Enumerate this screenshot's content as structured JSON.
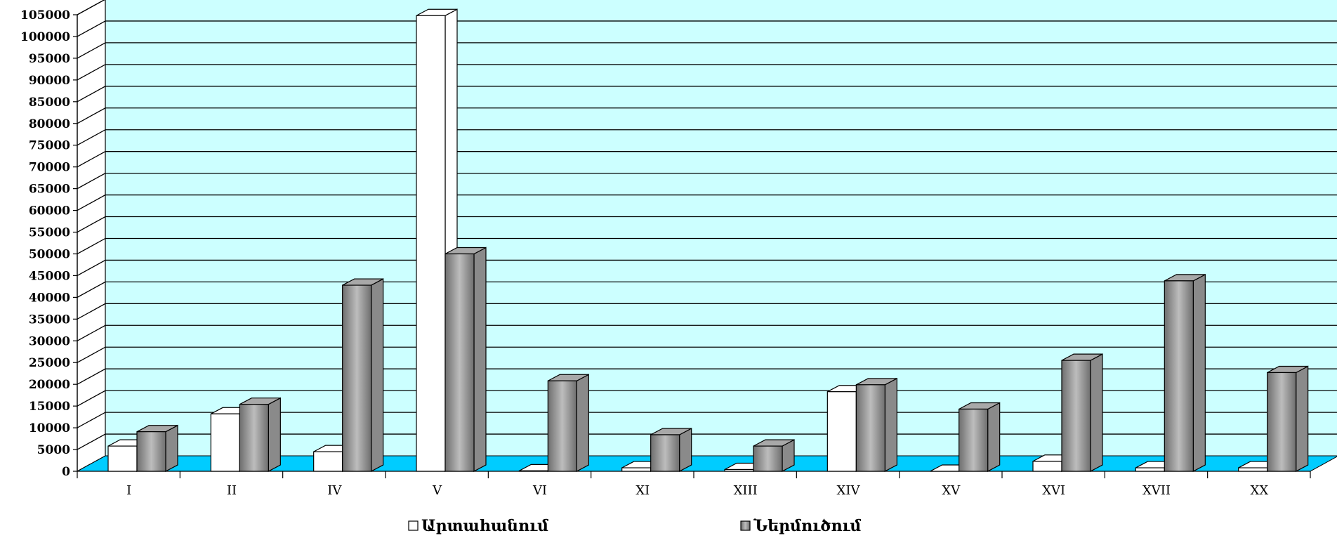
{
  "chart_data": {
    "type": "bar",
    "categories": [
      "I",
      "II",
      "IV",
      "V",
      "VI",
      "XI",
      "XIII",
      "XIV",
      "XV",
      "XVI",
      "XVII",
      "XX"
    ],
    "series": [
      {
        "name": "Արտահանում",
        "color": "#ffffff",
        "values": [
          5800,
          13200,
          4500,
          104800,
          100,
          800,
          400,
          18300,
          0,
          2300,
          800,
          800
        ]
      },
      {
        "name": "Ներմուծում",
        "color": "#8c8c8c",
        "values": [
          9100,
          15400,
          42800,
          50000,
          20800,
          8400,
          5800,
          19900,
          14300,
          25500,
          43800,
          22700
        ]
      }
    ],
    "ylim": [
      0,
      105000
    ],
    "ytick_step": 5000,
    "grid": true,
    "legend_position": "bottom",
    "wall_color": "#ccffff",
    "floor_color": "#00ccff"
  }
}
